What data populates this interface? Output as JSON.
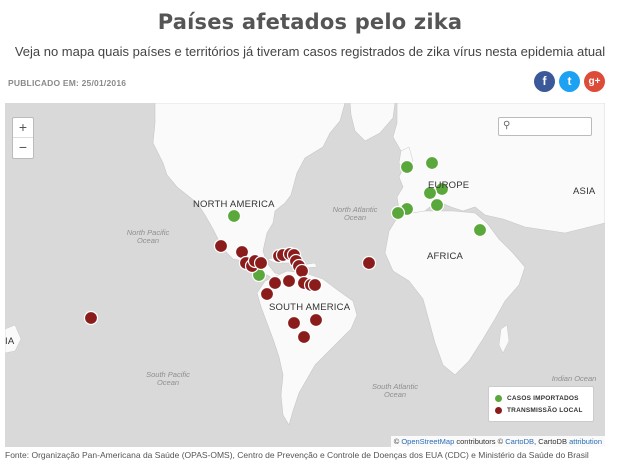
{
  "header": {
    "title": "Países afetados pelo zika",
    "subtitle": "Veja no mapa quais países e territórios já tiveram casos registrados de zika vírus nesta epidemia atual",
    "published": "PUBLICADO EM: 25/01/2016"
  },
  "share": {
    "facebook": "f",
    "twitter": "t",
    "googleplus": "g+"
  },
  "map": {
    "zoom_in": "+",
    "zoom_out": "−",
    "search_icon": "magnifier-icon",
    "regions": {
      "north_america": "NORTH AMERICA",
      "south_america": "SOUTH AMERICA",
      "europe": "EUROPE",
      "africa": "AFRICA",
      "asia": "ASIA",
      "edge": "IA"
    },
    "oceans": {
      "north_pacific": "North Pacific\nOcean",
      "north_atlantic": "North Atlantic\nOcean",
      "south_pacific": "South Pacific\nOcean",
      "south_atlantic": "South Atlantic\nOcean",
      "indian": "Indian Ocean"
    },
    "colors": {
      "imported": "#5aa73b",
      "local": "#8b1c1c",
      "land": "#fafafa",
      "water": "#d9d9d9"
    },
    "legend": {
      "imported": "CASOS IMPORTADOS",
      "local": "TRANSMISSÃO LOCAL"
    },
    "attribution": {
      "copy": "©",
      "osm": "OpenStreetMap",
      "contrib": "contributors ©",
      "carto": "CartoDB",
      "sep": ", CartoDB",
      "attr": "attribution"
    }
  },
  "footer": {
    "source": "Fonte: Organização Pan-Americana da Saúde (OPAS-OMS), Centro de Prevenção e Controle de Doenças dos EUA (CDC) e Ministério da Saúde do Brasil"
  }
}
